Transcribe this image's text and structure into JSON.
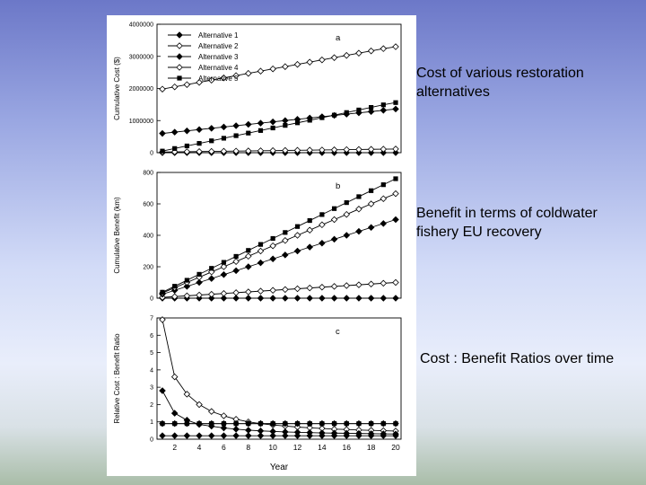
{
  "captions": {
    "a": "Cost of various restoration alternatives",
    "b": "Benefit in terms of coldwater fishery EU recovery",
    "c": "Cost : Benefit Ratios over time"
  },
  "xlabel": "Year",
  "chart_data": [
    {
      "type": "line",
      "panel_label": "a",
      "ylabel": "Cumulative Cost ($)",
      "xlim": [
        1,
        20
      ],
      "ylim": [
        0,
        4000000
      ],
      "yticks": [
        0,
        1000000,
        2000000,
        3000000,
        4000000
      ],
      "xticks": [],
      "legend": [
        "Alternative 1",
        "Alternative 2",
        "Alternative 3",
        "Alternative 4",
        "Alternative 5"
      ],
      "legend_position": "top-left",
      "series": [
        {
          "name": "Alternative 1",
          "marker": "diamond-filled",
          "values": [
            0,
            0,
            0,
            0,
            0,
            0,
            0,
            0,
            0,
            0,
            0,
            0,
            0,
            0,
            0,
            0,
            0,
            0,
            0,
            0
          ]
        },
        {
          "name": "Alternative 2",
          "marker": "diamond-open",
          "values": [
            20000,
            25000,
            30000,
            35000,
            40000,
            45000,
            50000,
            55000,
            60000,
            65000,
            70000,
            75000,
            80000,
            85000,
            90000,
            95000,
            100000,
            105000,
            110000,
            115000
          ]
        },
        {
          "name": "Alternative 3",
          "marker": "diamond-filled",
          "values": [
            600000,
            640000,
            680000,
            720000,
            760000,
            800000,
            840000,
            880000,
            920000,
            960000,
            1000000,
            1040000,
            1080000,
            1120000,
            1160000,
            1200000,
            1240000,
            1280000,
            1320000,
            1360000
          ]
        },
        {
          "name": "Alternative 4",
          "marker": "diamond-open",
          "values": [
            1980000,
            2050000,
            2120000,
            2190000,
            2260000,
            2330000,
            2400000,
            2470000,
            2540000,
            2610000,
            2680000,
            2750000,
            2820000,
            2890000,
            2960000,
            3030000,
            3100000,
            3170000,
            3240000,
            3300000
          ]
        },
        {
          "name": "Alternative 5",
          "marker": "square-filled",
          "values": [
            50000,
            130000,
            210000,
            290000,
            370000,
            450000,
            530000,
            610000,
            690000,
            770000,
            850000,
            930000,
            1010000,
            1090000,
            1170000,
            1250000,
            1330000,
            1410000,
            1490000,
            1560000
          ]
        }
      ]
    },
    {
      "type": "line",
      "panel_label": "b",
      "ylabel": "Cumulative Benefit (km)",
      "xlim": [
        1,
        20
      ],
      "ylim": [
        0,
        800
      ],
      "yticks": [
        0,
        200,
        400,
        600,
        800
      ],
      "xticks": [],
      "series": [
        {
          "name": "Alternative 1",
          "marker": "diamond-filled",
          "values": [
            0,
            0,
            0,
            0,
            0,
            0,
            0,
            0,
            0,
            0,
            0,
            0,
            0,
            0,
            0,
            0,
            0,
            0,
            0,
            0
          ]
        },
        {
          "name": "Alternative 2",
          "marker": "diamond-open",
          "values": [
            5,
            10,
            15,
            20,
            25,
            30,
            35,
            40,
            45,
            50,
            55,
            60,
            65,
            70,
            75,
            80,
            85,
            90,
            95,
            100
          ]
        },
        {
          "name": "Alternative 3",
          "marker": "diamond-filled",
          "values": [
            25,
            50,
            75,
            100,
            125,
            150,
            175,
            200,
            225,
            250,
            275,
            300,
            325,
            350,
            375,
            400,
            425,
            450,
            475,
            500
          ]
        },
        {
          "name": "Alternative 4",
          "marker": "diamond-open",
          "values": [
            33,
            67,
            100,
            133,
            167,
            200,
            233,
            267,
            300,
            333,
            367,
            400,
            433,
            467,
            500,
            533,
            567,
            600,
            633,
            665
          ]
        },
        {
          "name": "Alternative 5",
          "marker": "square-filled",
          "values": [
            38,
            76,
            114,
            152,
            190,
            228,
            266,
            304,
            342,
            380,
            418,
            456,
            494,
            532,
            570,
            608,
            646,
            684,
            722,
            760
          ]
        }
      ]
    },
    {
      "type": "line",
      "panel_label": "c",
      "ylabel": "Relative Cost : Benefit Ratio",
      "xlim": [
        1,
        20
      ],
      "ylim": [
        0,
        7
      ],
      "yticks": [
        0,
        1,
        2,
        3,
        4,
        5,
        6,
        7
      ],
      "xticks": [
        2,
        4,
        6,
        8,
        10,
        12,
        14,
        16,
        18,
        20
      ],
      "series": [
        {
          "name": "Alternative 1",
          "marker": "diamond-filled",
          "values": [
            0.2,
            0.2,
            0.2,
            0.2,
            0.2,
            0.2,
            0.2,
            0.2,
            0.2,
            0.2,
            0.2,
            0.2,
            0.2,
            0.2,
            0.2,
            0.2,
            0.2,
            0.2,
            0.2,
            0.2
          ]
        },
        {
          "name": "Alternative 2",
          "marker": "diamond-open",
          "values": [
            6.9,
            3.6,
            2.6,
            2.0,
            1.6,
            1.35,
            1.15,
            1.0,
            0.9,
            0.82,
            0.76,
            0.7,
            0.66,
            0.62,
            0.58,
            0.56,
            0.53,
            0.51,
            0.49,
            0.47
          ]
        },
        {
          "name": "Alternative 3",
          "marker": "diamond-filled",
          "values": [
            2.8,
            1.5,
            1.1,
            0.85,
            0.75,
            0.65,
            0.58,
            0.52,
            0.48,
            0.45,
            0.42,
            0.4,
            0.38,
            0.36,
            0.35,
            0.34,
            0.33,
            0.32,
            0.31,
            0.3
          ]
        },
        {
          "name": "Alternative 4",
          "marker": "diamond-open",
          "values": [
            0.9,
            0.9,
            0.9,
            0.9,
            0.9,
            0.9,
            0.9,
            0.9,
            0.9,
            0.9,
            0.9,
            0.9,
            0.9,
            0.9,
            0.9,
            0.9,
            0.9,
            0.9,
            0.9,
            0.9
          ]
        },
        {
          "name": "Alternative 5",
          "marker": "square-filled",
          "values": [
            0.9,
            0.9,
            0.9,
            0.9,
            0.9,
            0.9,
            0.9,
            0.9,
            0.9,
            0.9,
            0.9,
            0.9,
            0.9,
            0.9,
            0.9,
            0.9,
            0.9,
            0.9,
            0.9,
            0.9
          ]
        }
      ]
    }
  ]
}
